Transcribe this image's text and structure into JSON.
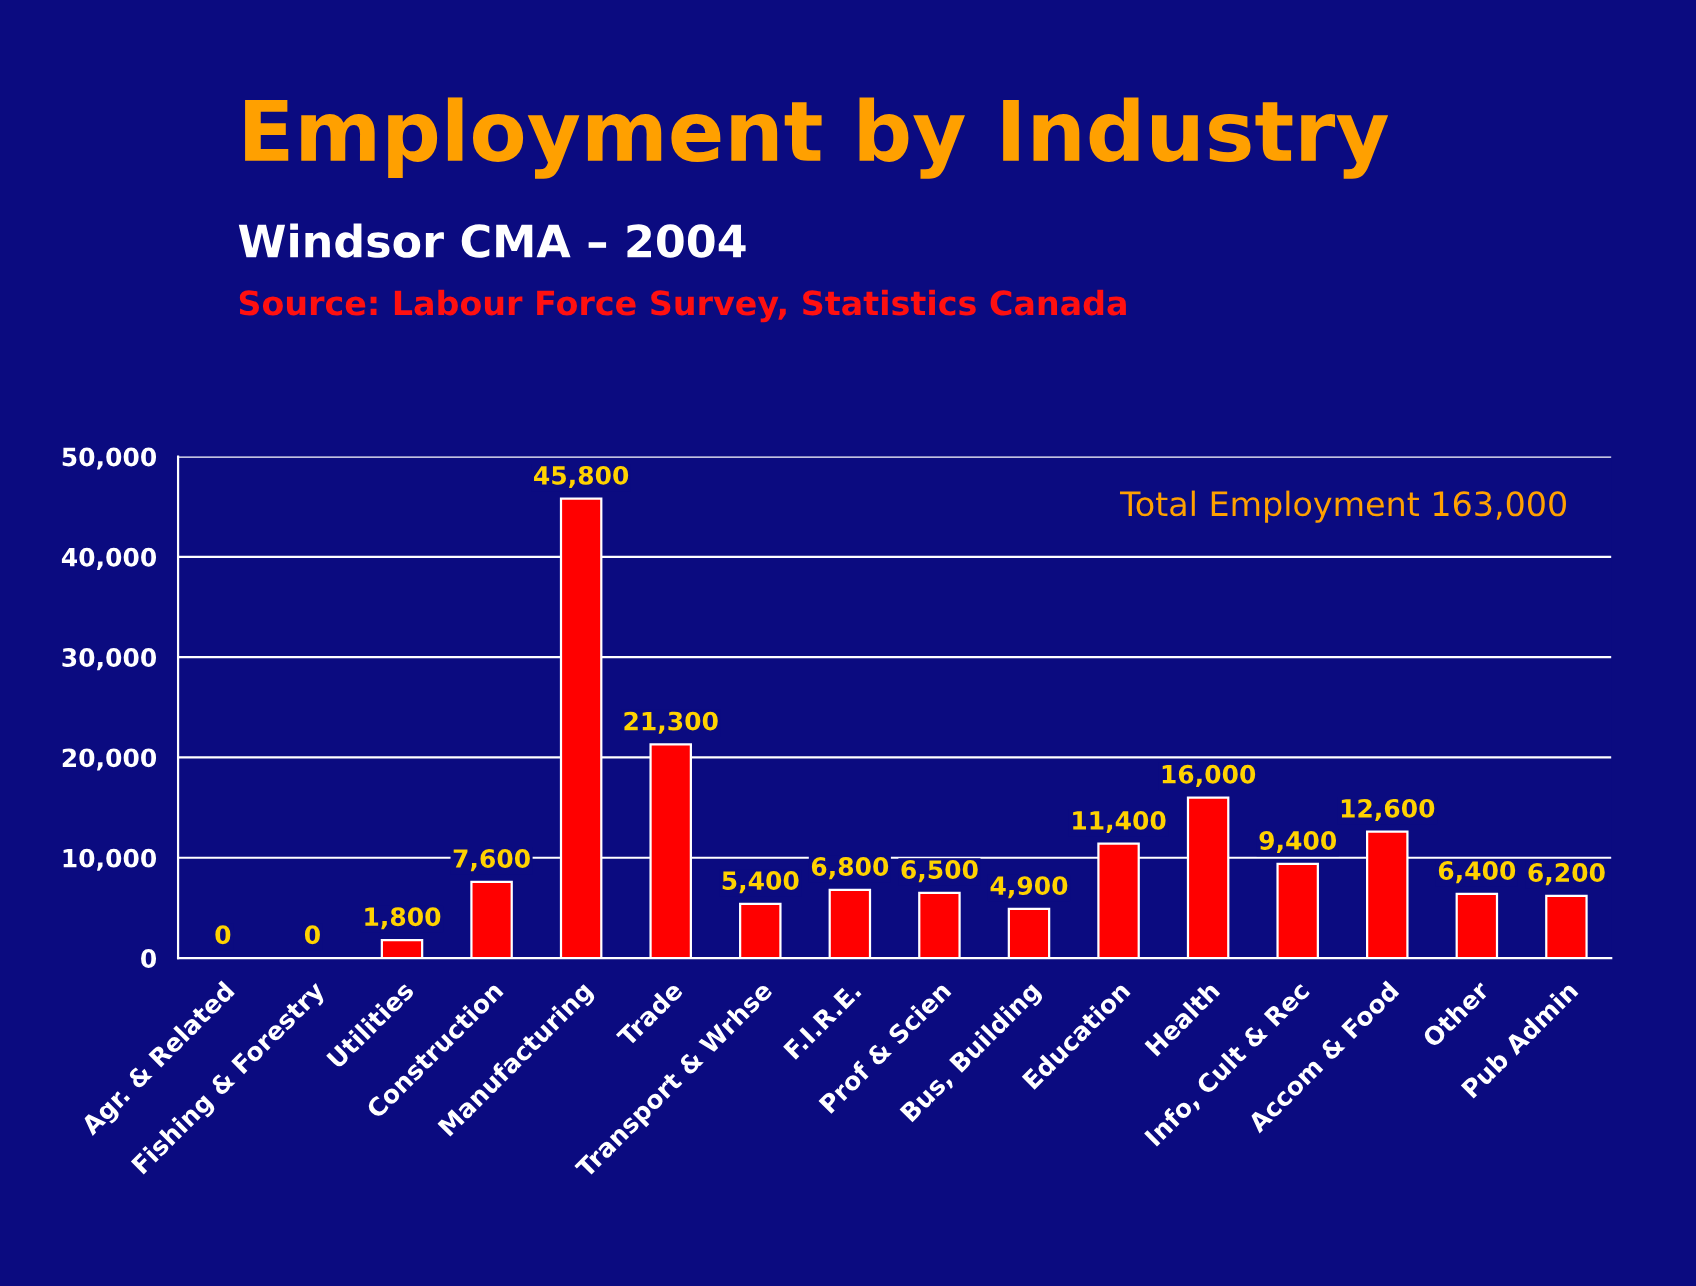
{
  "chart_data": {
    "type": "bar",
    "title": "Employment by Industry",
    "subtitle": "Windsor CMA – 2004",
    "annotations": [
      "Source: Labour Force Survey, Statistics Canada",
      "Total Employment 163,000"
    ],
    "categories": [
      "Agr. & Related",
      "Fishing & Forestry",
      "Utilities",
      "Construction",
      "Manufacturing",
      "Trade",
      "Transport & Wrhse",
      "F.I.R.E.",
      "Prof & Scien",
      "Bus, Building",
      "Education",
      "Health",
      "Info, Cult & Rec",
      "Accom & Food",
      "Other",
      "Pub Admin"
    ],
    "values": [
      0,
      0,
      1800,
      7600,
      45800,
      21300,
      5400,
      6800,
      6500,
      4900,
      11400,
      16000,
      9400,
      12600,
      6400,
      6200
    ],
    "value_labels": [
      "0",
      "0",
      "1,800",
      "7,600",
      "45,800",
      "21,300",
      "5,400",
      "6,800",
      "6,500",
      "4,900",
      "11,400",
      "16,000",
      "9,400",
      "12,600",
      "6,400",
      "6,200"
    ],
    "color": "#ff0000",
    "ylim": [
      0,
      50000
    ],
    "yticks": [
      0,
      {
        "value": 10000,
        "label": "10,000"
      },
      {
        "value": 20000,
        "label": "20,000"
      },
      {
        "value": 30000,
        "label": "30,000"
      },
      {
        "value": 40000,
        "label": "40,000"
      },
      {
        "value": 50000,
        "label": "50,000"
      }
    ],
    "grid": "y",
    "legend": false
  }
}
